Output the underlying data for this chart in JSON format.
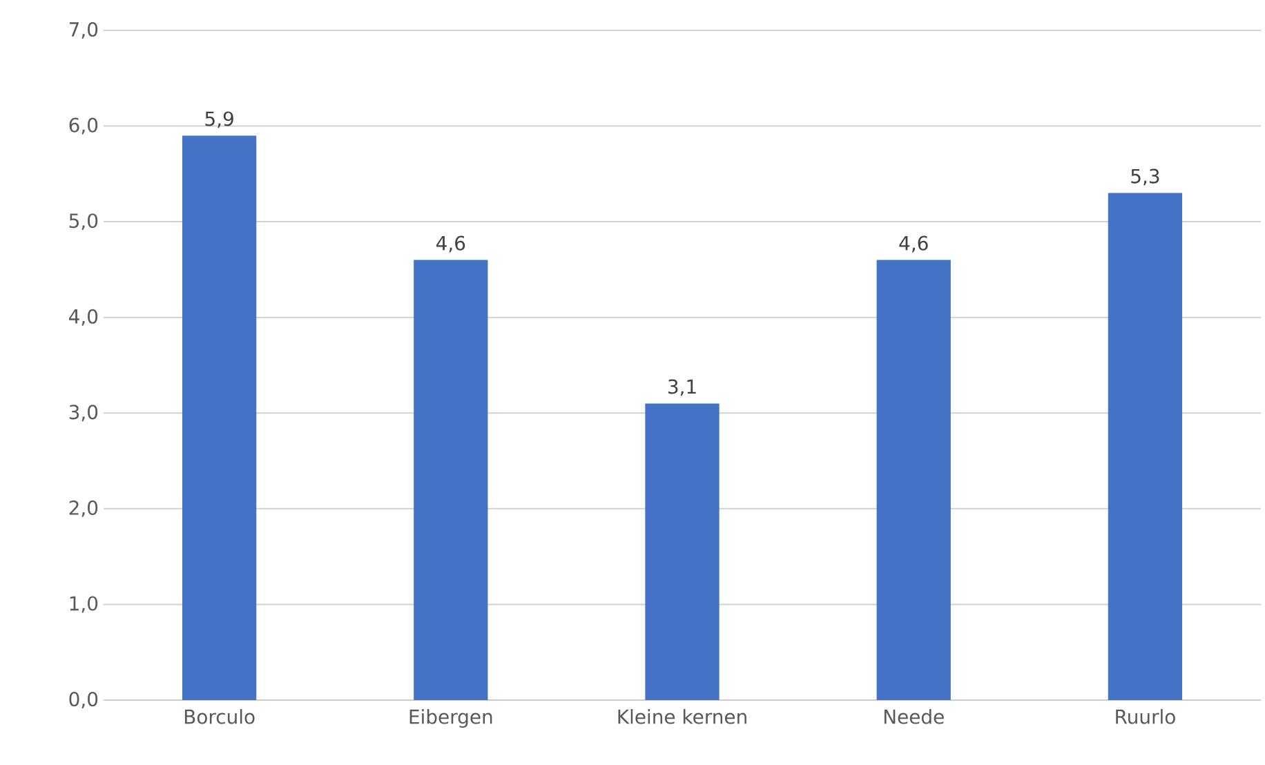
{
  "chart_data": {
    "type": "bar",
    "categories": [
      "Borculo",
      "Eibergen",
      "Kleine kernen",
      "Neede",
      "Ruurlo"
    ],
    "values": [
      5.9,
      4.6,
      3.1,
      4.6,
      5.3
    ],
    "value_labels": [
      "5,9",
      "4,6",
      "3,1",
      "4,6",
      "5,3"
    ],
    "color": "#4472c4",
    "ylim": [
      0,
      7
    ],
    "yticks": [
      {
        "value": 0,
        "label": "0,0"
      },
      {
        "value": 1,
        "label": "1,0"
      },
      {
        "value": 2,
        "label": "2,0"
      },
      {
        "value": 3,
        "label": "3,0"
      },
      {
        "value": 4,
        "label": "4,0"
      },
      {
        "value": 5,
        "label": "5,0"
      },
      {
        "value": 6,
        "label": "6,0"
      },
      {
        "value": 7,
        "label": "7,0"
      }
    ],
    "grid": "y"
  }
}
